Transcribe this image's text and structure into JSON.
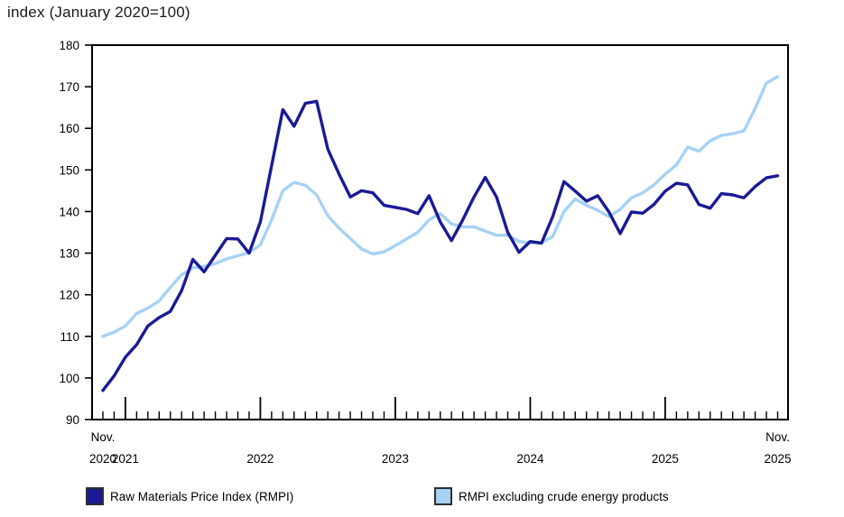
{
  "title": "index (January 2020=100)",
  "colors": {
    "rmpi_line": "#1a1a96",
    "rmpi_ex_line": "#a5d2f5",
    "axis": "#000000",
    "text": "#000000"
  },
  "legend": {
    "items": [
      {
        "label": "Raw Materials Price Index (RMPI)",
        "swatch_color": "#1a1a96"
      },
      {
        "label": "RMPI excluding crude energy products",
        "swatch_color": "#a5d2f5"
      }
    ]
  },
  "chart_data": {
    "type": "line",
    "title": "index (January 2020=100)",
    "grid": false,
    "legend_position": "bottom",
    "ylim": [
      90,
      180
    ],
    "y_ticks": [
      90,
      100,
      110,
      120,
      130,
      140,
      150,
      160,
      170,
      180
    ],
    "x": [
      "2020-11",
      "2020-12",
      "2021-01",
      "2021-02",
      "2021-03",
      "2021-04",
      "2021-05",
      "2021-06",
      "2021-07",
      "2021-08",
      "2021-09",
      "2021-10",
      "2021-11",
      "2021-12",
      "2022-01",
      "2022-02",
      "2022-03",
      "2022-04",
      "2022-05",
      "2022-06",
      "2022-07",
      "2022-08",
      "2022-09",
      "2022-10",
      "2022-11",
      "2022-12",
      "2023-01",
      "2023-02",
      "2023-03",
      "2023-04",
      "2023-05",
      "2023-06",
      "2023-07",
      "2023-08",
      "2023-09",
      "2023-10",
      "2023-11",
      "2023-12",
      "2024-01",
      "2024-02",
      "2024-03",
      "2024-04",
      "2024-05",
      "2024-06",
      "2024-07",
      "2024-08",
      "2024-09",
      "2024-10",
      "2024-11",
      "2024-12",
      "2025-01",
      "2025-02",
      "2025-03",
      "2025-04",
      "2025-05",
      "2025-06",
      "2025-07",
      "2025-08",
      "2025-09",
      "2025-10",
      "2025-11"
    ],
    "x_axis": {
      "start_label": {
        "line1": "Nov.",
        "line2": "2020"
      },
      "end_label": {
        "line1": "Nov.",
        "line2": "2025"
      },
      "year_labels": [
        {
          "text": "2021",
          "month_index": 2
        },
        {
          "text": "2022",
          "month_index": 14
        },
        {
          "text": "2023",
          "month_index": 26
        },
        {
          "text": "2024",
          "month_index": 38
        },
        {
          "text": "2025",
          "month_index": 50
        }
      ]
    },
    "series": [
      {
        "name": "Raw Materials Price Index (RMPI)",
        "color": "#1a1a96",
        "values": [
          97,
          100.5,
          105,
          108,
          112.5,
          114.5,
          116,
          121,
          128.5,
          125.5,
          129.5,
          133.5,
          133.4,
          130,
          137.5,
          151,
          164.5,
          160.5,
          166,
          166.5,
          155,
          149,
          143.5,
          145,
          144.5,
          141.5,
          141,
          140.5,
          139.5,
          143.8,
          137.5,
          133,
          138,
          143.5,
          148.2,
          143.5,
          135,
          130.2,
          132.8,
          132.4,
          138.8,
          147.2,
          144.9,
          142.5,
          143.8,
          139.9,
          134.7,
          139.9,
          139.6,
          141.7,
          144.9,
          146.8,
          146.4,
          141.7,
          140.8,
          144.3,
          144,
          143.3,
          146,
          148.1,
          148.6
        ]
      },
      {
        "name": "RMPI excluding crude energy products",
        "color": "#a5d2f5",
        "values": [
          110,
          111,
          112.5,
          115.5,
          116.8,
          118.5,
          121.8,
          124.8,
          126.5,
          126.8,
          127.5,
          128.6,
          129.4,
          130.1,
          132,
          138,
          145,
          147,
          146.3,
          144,
          139,
          136,
          133.5,
          131,
          129.8,
          130.3,
          131.8,
          133.4,
          135,
          138,
          139.5,
          137,
          136.3,
          136.3,
          135.3,
          134.3,
          134.3,
          132.8,
          132.5,
          132.5,
          134,
          140,
          143,
          141.5,
          140.3,
          138.8,
          140.5,
          143.3,
          144.5,
          146.4,
          149,
          151.2,
          155.5,
          154.5,
          157,
          158.3,
          158.7,
          159.4,
          164.8,
          170.9,
          172.4
        ]
      }
    ]
  }
}
